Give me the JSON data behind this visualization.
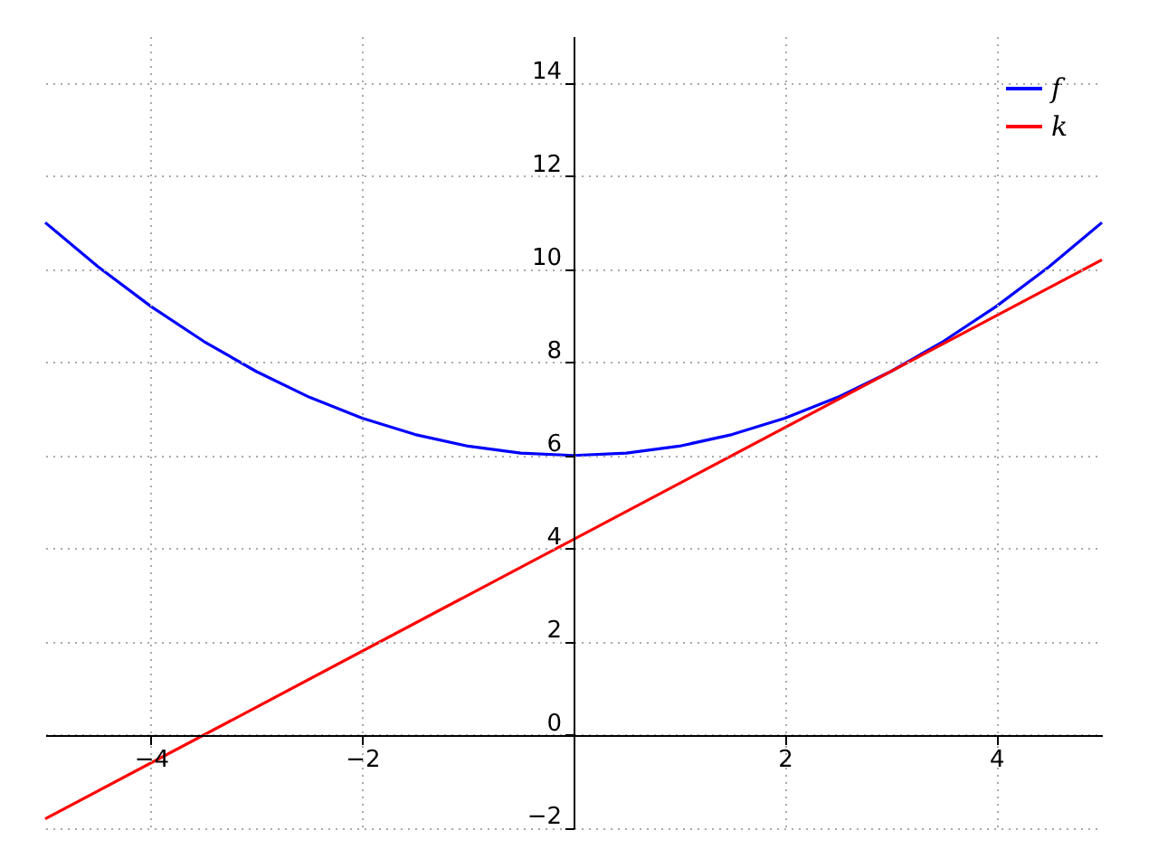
{
  "chart_data": {
    "type": "line",
    "xlim": [
      -5,
      5
    ],
    "ylim": [
      -2,
      15
    ],
    "xticks": [
      -4,
      -2,
      2,
      4
    ],
    "yticks": [
      -2,
      0,
      2,
      4,
      6,
      8,
      10,
      12,
      14
    ],
    "grid": true,
    "legend": "top right",
    "marker": "none",
    "line_style": "solid",
    "series": [
      {
        "name": "f",
        "color": "#0000ff",
        "x": [
          -5,
          -4.5,
          -4,
          -3.5,
          -3,
          -2.5,
          -2,
          -1.5,
          -1,
          -0.5,
          0,
          0.5,
          1,
          1.5,
          2,
          2.5,
          3,
          3.5,
          4,
          4.5,
          5
        ],
        "values": [
          11,
          10.05,
          9.2,
          8.45,
          7.8,
          7.25,
          6.8,
          6.45,
          6.2,
          6.05,
          6,
          6.05,
          6.2,
          6.45,
          6.8,
          7.25,
          7.8,
          8.45,
          9.2,
          10.05,
          11
        ]
      },
      {
        "name": "k",
        "color": "#ff0000",
        "x": [
          -5,
          5
        ],
        "values": [
          -1.8,
          10.2
        ]
      }
    ]
  }
}
